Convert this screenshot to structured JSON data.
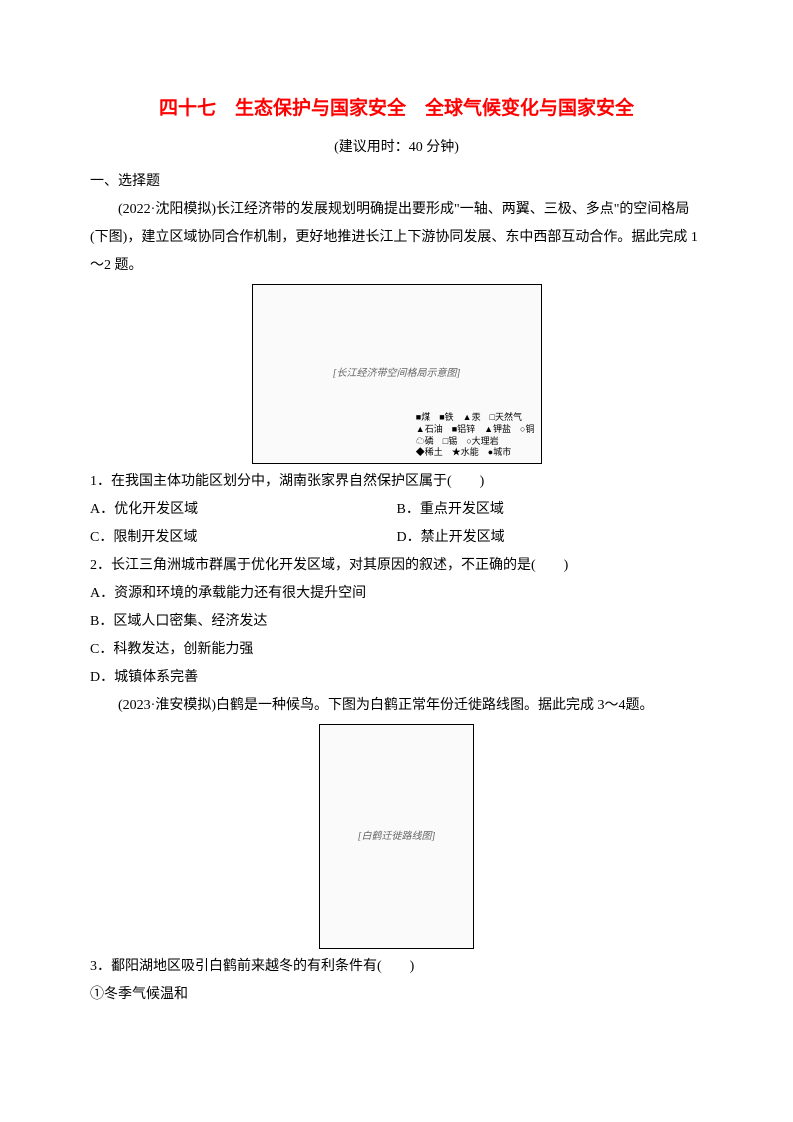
{
  "title": "四十七　生态保护与国家安全　全球气候变化与国家安全",
  "subtitle": "(建议用时：40 分钟)",
  "section1": "一、选择题",
  "passage1": "(2022·沈阳模拟)长江经济带的发展规划明确提出要形成\"一轴、两翼、三极、多点\"的空间格局(下图)，建立区域协同合作机制，更好地推进长江上下游协同发展、东中西部互动合作。据此完成 1～2 题。",
  "figure1": {
    "placeholder": "[长江经济带空间格局示意图]",
    "legend_lines": [
      "■煤　■铁　▲汞　□天然气",
      "▲石油　■铝锌　▲钾盐　○铜",
      "☁磷　□锡　○大理岩",
      "◆稀土　★水能　●城市"
    ]
  },
  "q1": {
    "stem": "1．在我国主体功能区划分中，湖南张家界自然保护区属于(　　)",
    "A": "A．优化开发区域",
    "B": "B．重点开发区域",
    "C": "C．限制开发区域",
    "D": "D．禁止开发区域"
  },
  "q2": {
    "stem": "2．长江三角洲城市群属于优化开发区域，对其原因的叙述，不正确的是(　　)",
    "A": "A．资源和环境的承载能力还有很大提升空间",
    "B": "B．区域人口密集、经济发达",
    "C": "C．科教发达，创新能力强",
    "D": "D．城镇体系完善"
  },
  "passage2": "(2023·淮安模拟)白鹤是一种候鸟。下图为白鹤正常年份迁徙路线图。据此完成 3～4题。",
  "figure2": {
    "placeholder": "[白鹤迁徙路线图]"
  },
  "q3": {
    "stem": "3．鄱阳湖地区吸引白鹤前来越冬的有利条件有(　　)",
    "cond1": "①冬季气候温和"
  }
}
